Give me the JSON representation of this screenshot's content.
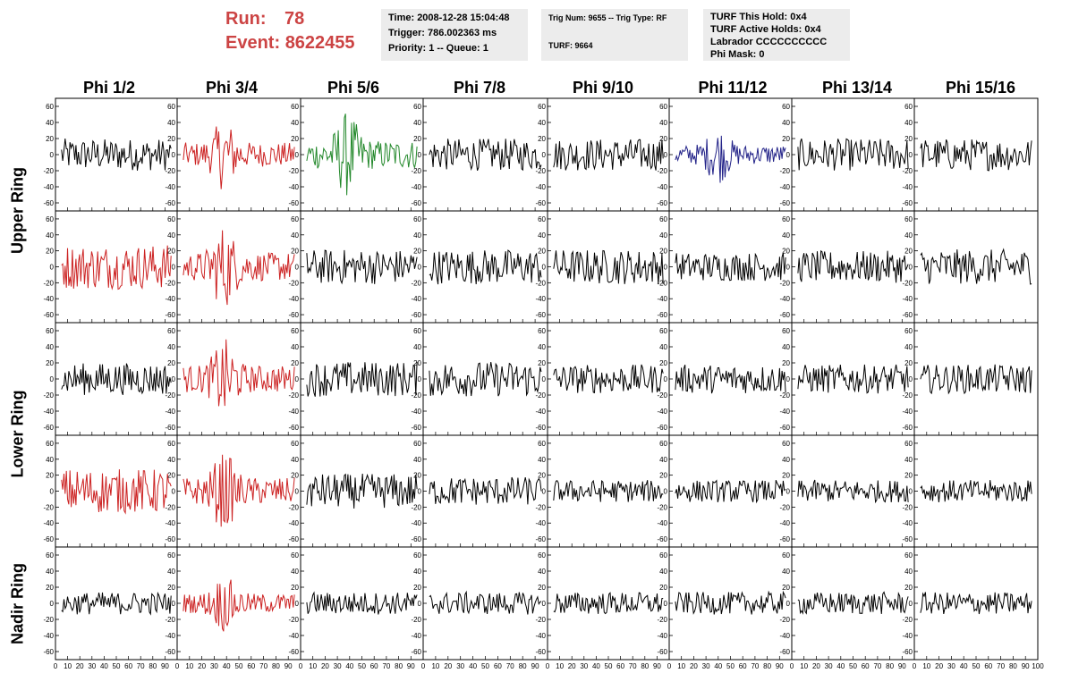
{
  "header": {
    "run_label": "Run:",
    "run_value": "78",
    "event_label": "Event:",
    "event_value": "8622455",
    "accent_color": "#cc4444"
  },
  "info1": {
    "time": "Time: 2008-12-28 15:04:48",
    "trigger": "Trigger: 786.002363 ms",
    "priority": "Priority: 1 -- Queue: 1"
  },
  "info2": {
    "trig": "Trig Num: 9655 -- Trig Type: RF",
    "turf": "TURF: 9664"
  },
  "info3": {
    "hold": "TURF This Hold: 0x4",
    "active": "TURF Active Holds: 0x4",
    "labrador": "Labrador CCCCCCCCCC",
    "phimask": "Phi Mask: 0"
  },
  "columns": [
    "Phi 1/2",
    "Phi 3/4",
    "Phi 5/6",
    "Phi 7/8",
    "Phi 9/10",
    "Phi 11/12",
    "Phi 13/14",
    "Phi 15/16"
  ],
  "rows": [
    "Upper Ring",
    "Lower Ring",
    "Nadir Ring"
  ],
  "chart_data": {
    "type": "line",
    "layout": "8 columns x 5 rows of waveform panels",
    "xlim": [
      0,
      100
    ],
    "ylim": [
      -70,
      70
    ],
    "y_ticks": [
      60,
      40,
      20,
      0,
      -20,
      -40,
      -60
    ],
    "x_ticks": [
      0,
      10,
      20,
      30,
      40,
      50,
      60,
      70,
      80,
      90,
      100
    ],
    "x_tick_labels": [
      "0",
      "10",
      "20",
      "30",
      "40",
      "50",
      "60",
      "70",
      "80",
      "90",
      "100"
    ],
    "samples_per_trace": 92,
    "colors": {
      "black": "#000000",
      "red": "#cc2222",
      "green": "#22882a",
      "blue": "#222288"
    },
    "panels": [
      [
        "black",
        "red",
        "green",
        "black",
        "black",
        "blue",
        "black",
        "black"
      ],
      [
        "red",
        "red",
        "black",
        "black",
        "black",
        "black",
        "black",
        "black"
      ],
      [
        "black",
        "red",
        "black",
        "black",
        "black",
        "black",
        "black",
        "black"
      ],
      [
        "red",
        "red",
        "black",
        "black",
        "black",
        "black",
        "black",
        "black"
      ],
      [
        "black",
        "red",
        "black",
        "black",
        "black",
        "black",
        "black",
        "black"
      ]
    ],
    "amplitude": [
      [
        20,
        25,
        30,
        20,
        20,
        20,
        20,
        20
      ],
      [
        28,
        30,
        22,
        22,
        22,
        18,
        20,
        22
      ],
      [
        20,
        28,
        22,
        22,
        18,
        18,
        18,
        18
      ],
      [
        28,
        28,
        22,
        18,
        14,
        14,
        14,
        14
      ],
      [
        14,
        20,
        14,
        14,
        14,
        14,
        14,
        14
      ]
    ],
    "pulse_center": [
      [
        0,
        38,
        38,
        0,
        0,
        40,
        0,
        0
      ],
      [
        0,
        38,
        0,
        0,
        0,
        0,
        0,
        0
      ],
      [
        0,
        38,
        0,
        0,
        0,
        0,
        0,
        0
      ],
      [
        0,
        38,
        0,
        0,
        0,
        0,
        0,
        0
      ],
      [
        0,
        38,
        0,
        0,
        0,
        0,
        0,
        0
      ]
    ]
  }
}
